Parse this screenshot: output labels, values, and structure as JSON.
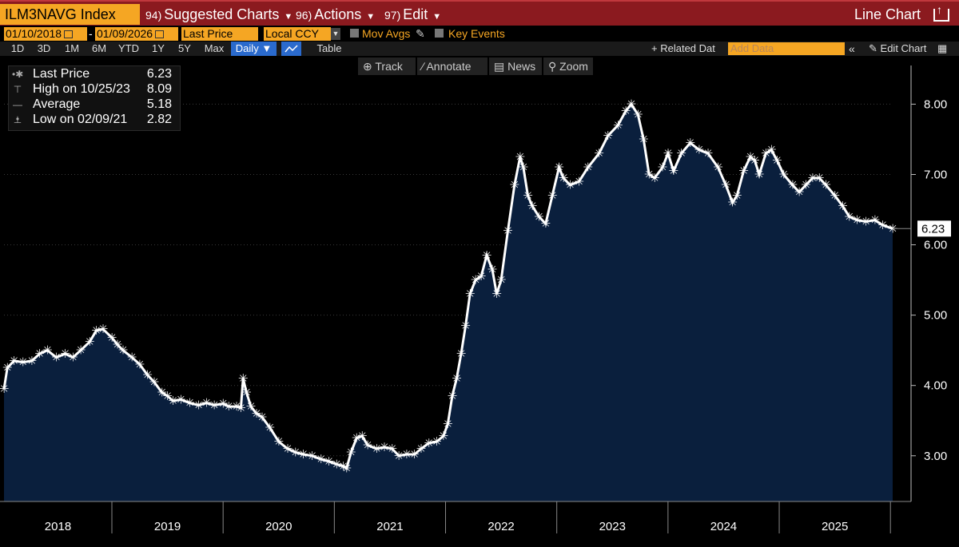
{
  "header": {
    "ticker": "ILM3NAVG Index",
    "menus": [
      {
        "num": "94)",
        "label": "Suggested Charts"
      },
      {
        "num": "96)",
        "label": "Actions"
      },
      {
        "num": "97)",
        "label": "Edit"
      }
    ],
    "chart_type": "Line Chart"
  },
  "controls": {
    "start_date": "01/10/2018",
    "end_date": "01/09/2026",
    "field": "Last Price",
    "currency": "Local CCY",
    "mov_avgs": "Mov Avgs",
    "key_events": "Key Events",
    "periods": [
      "1D",
      "3D",
      "1M",
      "6M",
      "YTD",
      "1Y",
      "5Y",
      "Max"
    ],
    "frequency": "Daily",
    "table": "Table",
    "related_data": "Related Dat",
    "add_data_placeholder": "Add Data",
    "edit_chart": "Edit Chart"
  },
  "toolbar": {
    "track": "Track",
    "annotate": "Annotate",
    "news": "News",
    "zoom": "Zoom"
  },
  "legend": {
    "last_price_label": "Last Price",
    "last_price_value": "6.23",
    "high_label": "High on 10/25/23",
    "high_value": "8.09",
    "average_label": "Average",
    "average_value": "5.18",
    "low_label": "Low on 02/09/21",
    "low_value": "2.82"
  },
  "colors": {
    "accent": "#f5a623",
    "title_bar": "#8b1a1f",
    "area_fill": "#0a1f3d",
    "line": "#ffffff"
  },
  "chart_data": {
    "type": "area",
    "title": "ILM3NAVG Index",
    "xlabel": "",
    "ylabel": "",
    "x_start": 2018.03,
    "x_end": 2026.02,
    "xlim": [
      2018.03,
      2026.02
    ],
    "ylim": [
      2.35,
      8.55
    ],
    "y_ticks": [
      3.0,
      4.0,
      5.0,
      6.0,
      7.0,
      8.0
    ],
    "y_tick_labels": [
      "3.00",
      "4.00",
      "5.00",
      "6.00",
      "7.00",
      "8.00"
    ],
    "x_tick_labels": [
      "2018",
      "2019",
      "2020",
      "2021",
      "2022",
      "2023",
      "2024",
      "2025"
    ],
    "last_value_label": "6.23",
    "series": [
      {
        "name": "Last Price",
        "points": [
          [
            2018.03,
            3.95
          ],
          [
            2018.06,
            4.25
          ],
          [
            2018.12,
            4.35
          ],
          [
            2018.2,
            4.33
          ],
          [
            2018.28,
            4.35
          ],
          [
            2018.35,
            4.45
          ],
          [
            2018.42,
            4.5
          ],
          [
            2018.5,
            4.4
          ],
          [
            2018.58,
            4.45
          ],
          [
            2018.65,
            4.4
          ],
          [
            2018.72,
            4.5
          ],
          [
            2018.8,
            4.62
          ],
          [
            2018.86,
            4.78
          ],
          [
            2018.92,
            4.8
          ],
          [
            2019.0,
            4.68
          ],
          [
            2019.05,
            4.58
          ],
          [
            2019.1,
            4.5
          ],
          [
            2019.18,
            4.4
          ],
          [
            2019.25,
            4.3
          ],
          [
            2019.32,
            4.15
          ],
          [
            2019.38,
            4.05
          ],
          [
            2019.45,
            3.9
          ],
          [
            2019.5,
            3.85
          ],
          [
            2019.55,
            3.78
          ],
          [
            2019.62,
            3.8
          ],
          [
            2019.7,
            3.75
          ],
          [
            2019.78,
            3.72
          ],
          [
            2019.85,
            3.75
          ],
          [
            2019.92,
            3.72
          ],
          [
            2020.0,
            3.74
          ],
          [
            2020.05,
            3.7
          ],
          [
            2020.12,
            3.7
          ],
          [
            2020.16,
            3.68
          ],
          [
            2020.18,
            4.1
          ],
          [
            2020.21,
            3.9
          ],
          [
            2020.25,
            3.7
          ],
          [
            2020.3,
            3.6
          ],
          [
            2020.35,
            3.55
          ],
          [
            2020.42,
            3.4
          ],
          [
            2020.5,
            3.2
          ],
          [
            2020.58,
            3.1
          ],
          [
            2020.65,
            3.05
          ],
          [
            2020.72,
            3.02
          ],
          [
            2020.8,
            3.0
          ],
          [
            2020.88,
            2.95
          ],
          [
            2020.95,
            2.92
          ],
          [
            2021.02,
            2.88
          ],
          [
            2021.08,
            2.85
          ],
          [
            2021.11,
            2.82
          ],
          [
            2021.15,
            3.05
          ],
          [
            2021.2,
            3.25
          ],
          [
            2021.25,
            3.28
          ],
          [
            2021.3,
            3.15
          ],
          [
            2021.38,
            3.1
          ],
          [
            2021.45,
            3.12
          ],
          [
            2021.52,
            3.1
          ],
          [
            2021.58,
            3.0
          ],
          [
            2021.65,
            3.02
          ],
          [
            2021.72,
            3.02
          ],
          [
            2021.78,
            3.1
          ],
          [
            2021.85,
            3.18
          ],
          [
            2021.92,
            3.2
          ],
          [
            2021.98,
            3.28
          ],
          [
            2022.02,
            3.45
          ],
          [
            2022.06,
            3.85
          ],
          [
            2022.1,
            4.1
          ],
          [
            2022.14,
            4.45
          ],
          [
            2022.18,
            4.85
          ],
          [
            2022.22,
            5.3
          ],
          [
            2022.27,
            5.5
          ],
          [
            2022.32,
            5.55
          ],
          [
            2022.37,
            5.85
          ],
          [
            2022.42,
            5.65
          ],
          [
            2022.46,
            5.3
          ],
          [
            2022.5,
            5.5
          ],
          [
            2022.56,
            6.2
          ],
          [
            2022.62,
            6.85
          ],
          [
            2022.67,
            7.25
          ],
          [
            2022.7,
            7.1
          ],
          [
            2022.74,
            6.7
          ],
          [
            2022.78,
            6.55
          ],
          [
            2022.84,
            6.4
          ],
          [
            2022.9,
            6.3
          ],
          [
            2022.96,
            6.7
          ],
          [
            2023.02,
            7.1
          ],
          [
            2023.06,
            6.95
          ],
          [
            2023.12,
            6.85
          ],
          [
            2023.2,
            6.9
          ],
          [
            2023.28,
            7.1
          ],
          [
            2023.38,
            7.3
          ],
          [
            2023.46,
            7.55
          ],
          [
            2023.55,
            7.7
          ],
          [
            2023.62,
            7.9
          ],
          [
            2023.67,
            8.0
          ],
          [
            2023.73,
            7.85
          ],
          [
            2023.78,
            7.5
          ],
          [
            2023.83,
            7.0
          ],
          [
            2023.88,
            6.95
          ],
          [
            2023.95,
            7.1
          ],
          [
            2024.0,
            7.3
          ],
          [
            2024.05,
            7.05
          ],
          [
            2024.12,
            7.3
          ],
          [
            2024.2,
            7.45
          ],
          [
            2024.28,
            7.35
          ],
          [
            2024.36,
            7.3
          ],
          [
            2024.45,
            7.1
          ],
          [
            2024.52,
            6.85
          ],
          [
            2024.58,
            6.6
          ],
          [
            2024.62,
            6.7
          ],
          [
            2024.68,
            7.05
          ],
          [
            2024.74,
            7.25
          ],
          [
            2024.78,
            7.2
          ],
          [
            2024.82,
            7.0
          ],
          [
            2024.88,
            7.3
          ],
          [
            2024.93,
            7.35
          ],
          [
            2024.98,
            7.2
          ],
          [
            2025.04,
            7.0
          ],
          [
            2025.12,
            6.85
          ],
          [
            2025.18,
            6.75
          ],
          [
            2025.24,
            6.85
          ],
          [
            2025.3,
            6.95
          ],
          [
            2025.36,
            6.95
          ],
          [
            2025.42,
            6.85
          ],
          [
            2025.5,
            6.7
          ],
          [
            2025.57,
            6.55
          ],
          [
            2025.63,
            6.4
          ],
          [
            2025.7,
            6.35
          ],
          [
            2025.78,
            6.33
          ],
          [
            2025.86,
            6.35
          ],
          [
            2025.93,
            6.28
          ],
          [
            2026.02,
            6.23
          ]
        ]
      }
    ]
  }
}
